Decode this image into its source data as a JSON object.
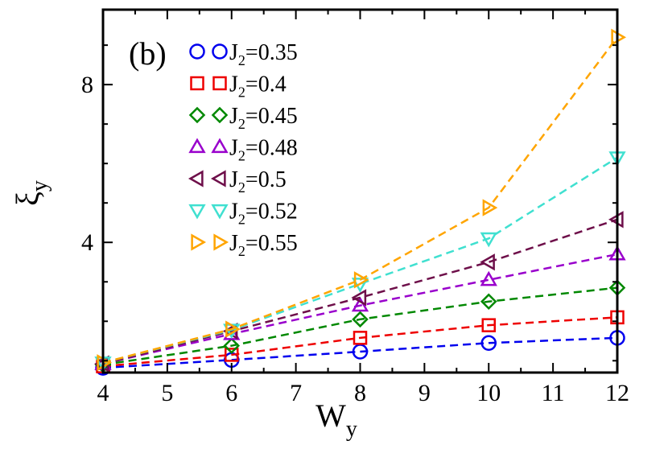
{
  "chart_data": {
    "type": "line",
    "panel_label": "(b)",
    "xlabel": "W",
    "xlabel_sub": "y",
    "ylabel": "ξ",
    "ylabel_sub": "y",
    "xlim": [
      4,
      12
    ],
    "ylim": [
      0.7,
      9.9
    ],
    "xticks": [
      4,
      5,
      6,
      7,
      8,
      9,
      10,
      11,
      12
    ],
    "yticks": [
      4,
      8
    ],
    "legend_position": "top-left",
    "x": [
      4,
      6,
      8,
      10,
      12
    ],
    "series": [
      {
        "name": "J2=0.35",
        "label_main": "J",
        "label_sub": "2",
        "label_value": "=0.35",
        "color": "#0000ee",
        "marker": "circle",
        "values": [
          0.82,
          1.02,
          1.23,
          1.45,
          1.58
        ]
      },
      {
        "name": "J2=0.4",
        "label_main": "J",
        "label_sub": "2",
        "label_value": "=0.4",
        "color": "#ee0000",
        "marker": "square",
        "values": [
          0.86,
          1.15,
          1.58,
          1.9,
          2.1
        ]
      },
      {
        "name": "J2=0.45",
        "label_main": "J",
        "label_sub": "2",
        "label_value": "=0.45",
        "color": "#008800",
        "marker": "diamond",
        "values": [
          0.9,
          1.38,
          2.05,
          2.5,
          2.85
        ]
      },
      {
        "name": "J2=0.48",
        "label_main": "J",
        "label_sub": "2",
        "label_value": "=0.48",
        "color": "#9900cc",
        "marker": "triangle-up",
        "values": [
          0.92,
          1.68,
          2.4,
          3.05,
          3.7
        ]
      },
      {
        "name": "J2=0.5",
        "label_main": "J",
        "label_sub": "2",
        "label_value": "=0.5",
        "color": "#6e0f4a",
        "marker": "triangle-left",
        "values": [
          0.92,
          1.75,
          2.6,
          3.5,
          4.58
        ]
      },
      {
        "name": "J2=0.52",
        "label_main": "J",
        "label_sub": "2",
        "label_value": "=0.52",
        "color": "#40e0d0",
        "marker": "triangle-down",
        "values": [
          0.95,
          1.78,
          2.95,
          4.1,
          6.15
        ]
      },
      {
        "name": "J2=0.55",
        "label_main": "J",
        "label_sub": "2",
        "label_value": "=0.55",
        "color": "#ffa500",
        "marker": "triangle-right",
        "values": [
          0.95,
          1.8,
          3.05,
          4.88,
          9.2
        ]
      }
    ]
  }
}
